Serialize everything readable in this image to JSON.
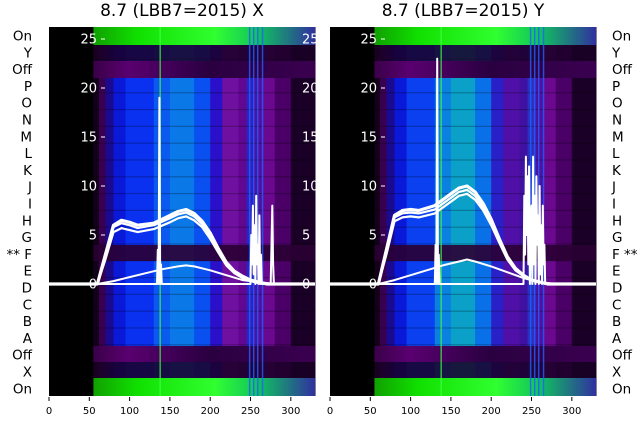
{
  "chart_data": [
    {
      "type": "heatmap",
      "title": "8.7 (LBB7=2015) X",
      "row_labels": [
        "On",
        "Y",
        "Off",
        "P",
        "O",
        "N",
        "M",
        "L",
        "K",
        "J",
        "I",
        "H",
        "G",
        "** F",
        "E",
        "D",
        "C",
        "B",
        "A",
        "Off",
        "X",
        "On"
      ],
      "xlim": [
        0,
        330
      ],
      "x_ticks": [
        0,
        50,
        100,
        150,
        200,
        250,
        300
      ],
      "y_ticks": [
        0,
        5,
        10,
        15,
        20,
        25
      ],
      "heatmap_columns": [
        {
          "x0": 0,
          "x1": 55,
          "color": "#000000"
        },
        {
          "x0": 55,
          "x1": 62,
          "color": "#14001a"
        },
        {
          "x0": 62,
          "x1": 70,
          "color": "#3a0050"
        },
        {
          "x0": 70,
          "x1": 80,
          "color": "#1a0a90"
        },
        {
          "x0": 80,
          "x1": 95,
          "color": "#0a18d8"
        },
        {
          "x0": 95,
          "x1": 130,
          "color": "#0a30f0"
        },
        {
          "x0": 130,
          "x1": 150,
          "color": "#0a5af0"
        },
        {
          "x0": 150,
          "x1": 180,
          "color": "#0b78e8"
        },
        {
          "x0": 180,
          "x1": 200,
          "color": "#0a50f0"
        },
        {
          "x0": 200,
          "x1": 215,
          "color": "#2a10c8"
        },
        {
          "x0": 215,
          "x1": 235,
          "color": "#7010a0"
        },
        {
          "x0": 235,
          "x1": 245,
          "color": "#600890"
        },
        {
          "x0": 245,
          "x1": 255,
          "color": "#3020c0"
        },
        {
          "x0": 255,
          "x1": 265,
          "color": "#5010a0"
        },
        {
          "x0": 265,
          "x1": 280,
          "color": "#6a0890"
        },
        {
          "x0": 280,
          "x1": 300,
          "color": "#4a0066"
        },
        {
          "x0": 300,
          "x1": 330,
          "color": "#1a0026"
        }
      ],
      "series": [
        {
          "x": [
            0,
            60,
            70,
            80,
            90,
            100,
            110,
            130,
            150,
            160,
            170,
            180,
            190,
            200,
            210,
            220,
            230,
            240,
            250,
            260,
            270,
            280,
            290,
            300,
            330
          ],
          "y": [
            0,
            0,
            3,
            6,
            6.5,
            6.3,
            6,
            6.2,
            7,
            7.4,
            7.6,
            7.2,
            6.4,
            5.2,
            3.6,
            2.2,
            1.3,
            0.8,
            0.4,
            0.2,
            0,
            0,
            0,
            0,
            0
          ]
        },
        {
          "x": [
            0,
            60,
            70,
            80,
            90,
            100,
            110,
            130,
            150,
            160,
            170,
            180,
            190,
            200,
            210,
            220,
            230,
            240,
            250,
            260,
            270,
            280,
            290,
            300,
            330
          ],
          "y": [
            0,
            0,
            2.8,
            5.8,
            6.2,
            6.0,
            5.7,
            6.0,
            6.7,
            7.1,
            7.3,
            6.9,
            6.1,
            4.9,
            3.4,
            2.0,
            1.2,
            0.7,
            0.3,
            0.1,
            0,
            0,
            0,
            0,
            0
          ]
        },
        {
          "x": [
            0,
            60,
            70,
            80,
            90,
            100,
            110,
            130,
            150,
            160,
            170,
            180,
            190,
            200,
            210,
            220,
            230,
            240,
            250,
            260,
            270,
            280,
            290,
            300,
            330
          ],
          "y": [
            0,
            0,
            2.5,
            5.3,
            5.7,
            5.5,
            5.3,
            5.6,
            6.3,
            6.7,
            6.9,
            6.5,
            5.8,
            4.6,
            3.2,
            1.9,
            1.1,
            0.6,
            0.3,
            0.1,
            0,
            0,
            0,
            0,
            0
          ]
        },
        {
          "x": [
            0,
            60,
            80,
            100,
            120,
            140,
            160,
            170,
            180,
            200,
            220,
            240,
            260,
            280,
            300,
            330
          ],
          "y": [
            0,
            0,
            0.3,
            0.7,
            1.1,
            1.5,
            1.8,
            1.9,
            1.8,
            1.4,
            0.9,
            0.4,
            0.2,
            0,
            0,
            0
          ]
        },
        {
          "x": [
            0,
            134,
            135,
            136,
            137,
            138,
            139,
            140,
            141,
            142,
            250,
            251,
            252,
            253,
            254,
            255,
            256,
            257,
            258,
            259,
            260,
            261,
            262,
            263,
            264,
            265,
            266,
            267,
            268,
            269,
            275,
            276,
            277,
            278,
            279,
            280,
            330
          ],
          "y": [
            0,
            0,
            3.5,
            0,
            19,
            0,
            2,
            0,
            0,
            0,
            0,
            5,
            2,
            8,
            1,
            6,
            0,
            9,
            2,
            4,
            0,
            7,
            0,
            3,
            0,
            0,
            0,
            0,
            0,
            0,
            0,
            4,
            8,
            2,
            0,
            0,
            0
          ]
        }
      ]
    },
    {
      "type": "heatmap",
      "title": "8.7 (LBB7=2015) Y",
      "row_labels": [
        "On",
        "Y",
        "Off",
        "P",
        "O",
        "N",
        "M",
        "L",
        "K",
        "J",
        "I",
        "H",
        "G",
        "F **",
        "E",
        "D",
        "C",
        "B",
        "A",
        "Off",
        "X",
        "On"
      ],
      "xlim": [
        0,
        330
      ],
      "x_ticks": [
        0,
        50,
        100,
        150,
        200,
        250,
        300
      ],
      "y_ticks": [
        0,
        5,
        10,
        15,
        20,
        25
      ],
      "heatmap_columns": [
        {
          "x0": 0,
          "x1": 55,
          "color": "#000000"
        },
        {
          "x0": 55,
          "x1": 62,
          "color": "#14001a"
        },
        {
          "x0": 62,
          "x1": 70,
          "color": "#3a0050"
        },
        {
          "x0": 70,
          "x1": 80,
          "color": "#1a0a90"
        },
        {
          "x0": 80,
          "x1": 95,
          "color": "#0a18d8"
        },
        {
          "x0": 95,
          "x1": 130,
          "color": "#0a40f0"
        },
        {
          "x0": 130,
          "x1": 150,
          "color": "#0a80e0"
        },
        {
          "x0": 150,
          "x1": 180,
          "color": "#0aa0c8"
        },
        {
          "x0": 180,
          "x1": 200,
          "color": "#0a70e8"
        },
        {
          "x0": 200,
          "x1": 215,
          "color": "#2a20c8"
        },
        {
          "x0": 215,
          "x1": 235,
          "color": "#5010a8"
        },
        {
          "x0": 235,
          "x1": 245,
          "color": "#4010a0"
        },
        {
          "x0": 245,
          "x1": 255,
          "color": "#2a30c0"
        },
        {
          "x0": 255,
          "x1": 265,
          "color": "#5010a0"
        },
        {
          "x0": 265,
          "x1": 280,
          "color": "#6a0890"
        },
        {
          "x0": 280,
          "x1": 300,
          "color": "#4a0066"
        },
        {
          "x0": 300,
          "x1": 330,
          "color": "#1a0026"
        }
      ],
      "series": [
        {
          "x": [
            0,
            60,
            70,
            80,
            90,
            100,
            110,
            130,
            150,
            160,
            170,
            180,
            190,
            200,
            210,
            220,
            230,
            240,
            250,
            260,
            270,
            280,
            290,
            300,
            330
          ],
          "y": [
            0,
            0,
            3.5,
            7,
            7.5,
            7.6,
            7.5,
            8,
            9.2,
            9.8,
            10,
            9.4,
            8.2,
            6.6,
            4.6,
            2.8,
            1.6,
            0.9,
            0.4,
            0.2,
            0,
            0,
            0,
            0,
            0
          ]
        },
        {
          "x": [
            0,
            60,
            70,
            80,
            90,
            100,
            110,
            130,
            150,
            160,
            170,
            180,
            190,
            200,
            210,
            220,
            230,
            240,
            250,
            260,
            270,
            280,
            290,
            300,
            330
          ],
          "y": [
            0,
            0,
            3.3,
            6.8,
            7.2,
            7.3,
            7.2,
            7.6,
            8.8,
            9.4,
            9.6,
            9.0,
            7.8,
            6.3,
            4.4,
            2.7,
            1.5,
            0.8,
            0.4,
            0.2,
            0,
            0,
            0,
            0,
            0
          ]
        },
        {
          "x": [
            0,
            60,
            70,
            80,
            90,
            100,
            110,
            130,
            150,
            160,
            170,
            180,
            190,
            200,
            210,
            220,
            230,
            240,
            250,
            260,
            270,
            280,
            290,
            300,
            330
          ],
          "y": [
            0,
            0,
            3.0,
            6.4,
            6.8,
            6.9,
            6.8,
            7.2,
            8.4,
            9.0,
            9.2,
            8.6,
            7.5,
            6.0,
            4.2,
            2.5,
            1.4,
            0.8,
            0.4,
            0.2,
            0,
            0,
            0,
            0,
            0
          ]
        },
        {
          "x": [
            0,
            60,
            80,
            100,
            120,
            140,
            160,
            170,
            180,
            200,
            220,
            240,
            260,
            280,
            300,
            330
          ],
          "y": [
            0,
            0,
            0.4,
            0.9,
            1.4,
            1.9,
            2.3,
            2.5,
            2.3,
            1.8,
            1.2,
            0.6,
            0.2,
            0,
            0,
            0
          ]
        },
        {
          "x": [
            0,
            130,
            131,
            132,
            133,
            134,
            135,
            136,
            137,
            138,
            139,
            140,
            240,
            241,
            242,
            243,
            244,
            245,
            246,
            247,
            248,
            249,
            250,
            251,
            252,
            253,
            254,
            255,
            256,
            257,
            258,
            259,
            260,
            261,
            262,
            263,
            264,
            265,
            266,
            267,
            268,
            269,
            270,
            330
          ],
          "y": [
            0,
            0,
            4,
            0,
            23,
            0,
            3,
            0,
            0,
            0,
            0,
            0,
            0,
            9,
            3,
            13,
            5,
            11,
            2,
            12,
            0,
            6,
            8,
            0,
            13,
            2,
            9,
            0,
            11,
            4,
            7,
            0,
            10,
            1,
            6,
            0,
            8,
            2,
            4,
            0,
            0,
            0,
            0,
            0
          ]
        }
      ]
    }
  ]
}
